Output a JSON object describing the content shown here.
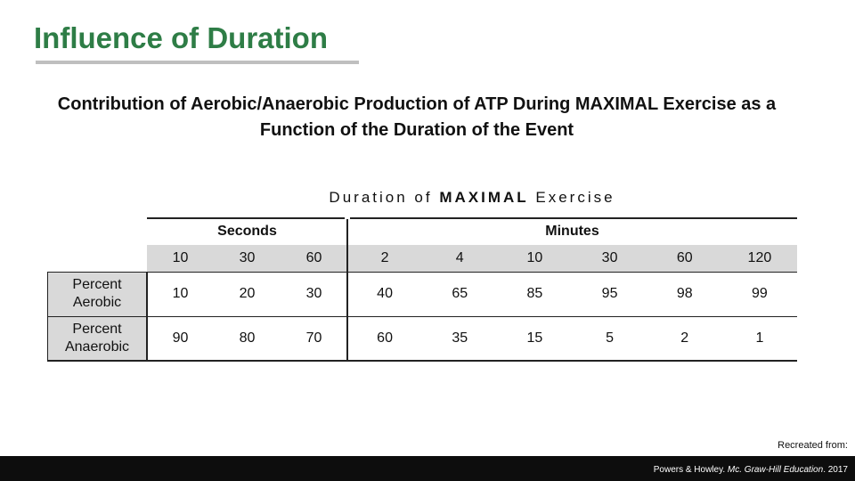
{
  "title": "Influence of Duration",
  "subtitle": "Contribution of Aerobic/Anaerobic Production of ATP During MAXIMAL Exercise as a Function of the Duration of the Event",
  "table": {
    "caption": [
      "Duration of",
      "MAXIMAL",
      "Exercise"
    ],
    "groups": [
      {
        "label": "Seconds",
        "span": 3
      },
      {
        "label": "Minutes",
        "span": 6
      }
    ],
    "durations": [
      10,
      30,
      60,
      2,
      4,
      10,
      30,
      60,
      120
    ],
    "rows": [
      {
        "label": "Percent Aerobic",
        "values": [
          10,
          20,
          30,
          40,
          65,
          85,
          95,
          98,
          99
        ]
      },
      {
        "label": "Percent Anaerobic",
        "values": [
          90,
          80,
          70,
          60,
          35,
          15,
          5,
          2,
          1
        ]
      }
    ]
  },
  "footer": {
    "note": "Recreated from:",
    "citation": [
      "Powers & Howley.",
      "Mc. Graw-Hill Education",
      ". 2017"
    ]
  }
}
